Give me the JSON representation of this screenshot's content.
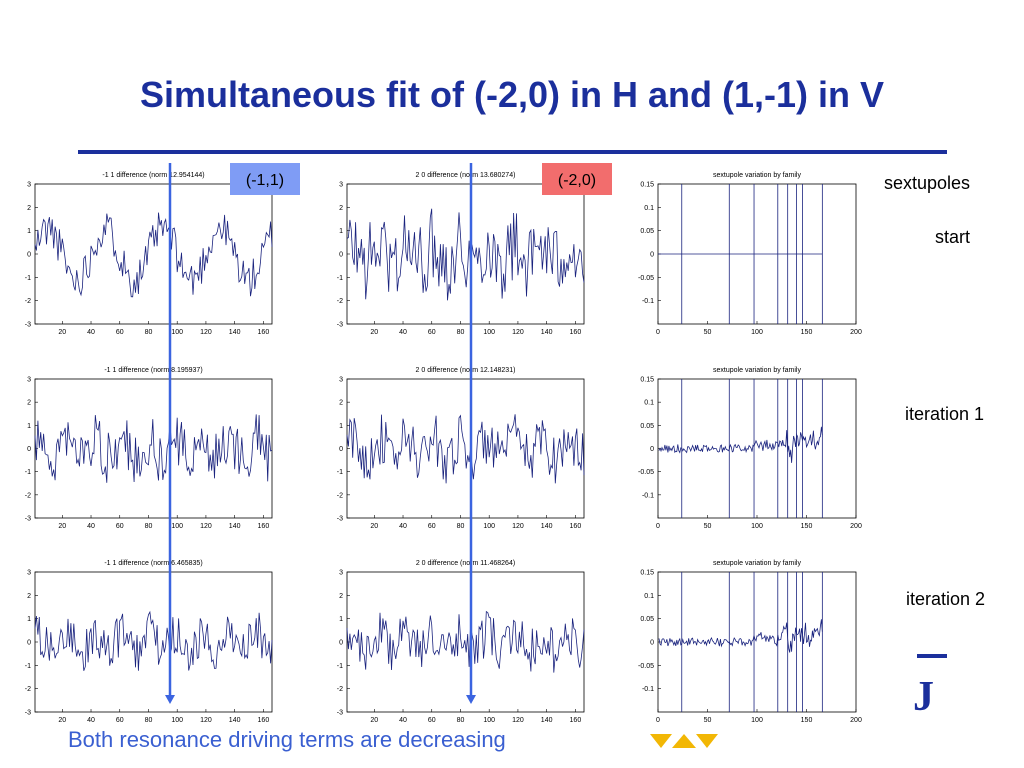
{
  "title": "Simultaneous fit of (-2,0) in H and (1,-1) in V",
  "footer": "Both resonance driving terms are decreasing",
  "tags": [
    {
      "text": "(-1,1)",
      "color": "#7f9cf5"
    },
    {
      "text": "(-2,0)",
      "color": "#f26d6d"
    }
  ],
  "row_labels": [
    "sextupoles",
    "start",
    "iteration 1",
    "iteration 2"
  ],
  "colors": {
    "title": "#1b2f9c",
    "trace": "#1a237e",
    "arrow": "#3b64e0",
    "footer": "#3a5fd1"
  },
  "chart_data": [
    {
      "type": "line",
      "title": "-1 1 difference (norm 12.954144)",
      "xlim": [
        1,
        166
      ],
      "ylim": [
        -3,
        3
      ],
      "xticks": [
        20,
        40,
        60,
        80,
        100,
        120,
        140,
        160
      ],
      "yticks": [
        -3,
        -2,
        -1,
        0,
        1,
        2,
        3
      ]
    },
    {
      "type": "line",
      "title": "2 0 difference (norm 13.680274)",
      "xlim": [
        1,
        166
      ],
      "ylim": [
        -3,
        3
      ],
      "xticks": [
        20,
        40,
        60,
        80,
        100,
        120,
        140,
        160
      ],
      "yticks": [
        -3,
        -2,
        -1,
        0,
        1,
        2,
        3
      ]
    },
    {
      "type": "line",
      "title": "sextupole variation by family",
      "xlim": [
        0,
        200
      ],
      "ylim": [
        -0.15,
        0.15
      ],
      "xticks": [
        0,
        50,
        100,
        150,
        200
      ],
      "yticks": [
        -0.1,
        -0.05,
        0,
        0.05,
        0.1,
        0.15
      ],
      "vlines": [
        24,
        72,
        97,
        121,
        131,
        140,
        146,
        166
      ]
    },
    {
      "type": "line",
      "title": "-1 1 difference (norm 8.195937)",
      "xlim": [
        1,
        166
      ],
      "ylim": [
        -3,
        3
      ],
      "xticks": [
        20,
        40,
        60,
        80,
        100,
        120,
        140,
        160
      ],
      "yticks": [
        -3,
        -2,
        -1,
        0,
        1,
        2,
        3
      ]
    },
    {
      "type": "line",
      "title": "2 0 difference (norm 12.148231)",
      "xlim": [
        1,
        166
      ],
      "ylim": [
        -3,
        3
      ],
      "xticks": [
        20,
        40,
        60,
        80,
        100,
        120,
        140,
        160
      ],
      "yticks": [
        -3,
        -2,
        -1,
        0,
        1,
        2,
        3
      ]
    },
    {
      "type": "line",
      "title": "sextupole variation by family",
      "xlim": [
        0,
        200
      ],
      "ylim": [
        -0.15,
        0.15
      ],
      "xticks": [
        0,
        50,
        100,
        150,
        200
      ],
      "yticks": [
        -0.1,
        -0.05,
        0,
        0.05,
        0.1,
        0.15
      ],
      "vlines": [
        24,
        72,
        97,
        121,
        131,
        140,
        146,
        166
      ]
    },
    {
      "type": "line",
      "title": "-1 1 difference (norm 6.465835)",
      "xlim": [
        1,
        166
      ],
      "ylim": [
        -3,
        3
      ],
      "xticks": [
        20,
        40,
        60,
        80,
        100,
        120,
        140,
        160
      ],
      "yticks": [
        -3,
        -2,
        -1,
        0,
        1,
        2,
        3
      ]
    },
    {
      "type": "line",
      "title": "2 0 difference (norm 11.468264)",
      "xlim": [
        1,
        166
      ],
      "ylim": [
        -3,
        3
      ],
      "xticks": [
        20,
        40,
        60,
        80,
        100,
        120,
        140,
        160
      ],
      "yticks": [
        -3,
        -2,
        -1,
        0,
        1,
        2,
        3
      ]
    },
    {
      "type": "line",
      "title": "sextupole variation by family",
      "xlim": [
        0,
        200
      ],
      "ylim": [
        -0.15,
        0.15
      ],
      "xticks": [
        0,
        50,
        100,
        150,
        200
      ],
      "yticks": [
        -0.1,
        -0.05,
        0,
        0.05,
        0.1,
        0.15
      ],
      "vlines": [
        24,
        72,
        97,
        121,
        131,
        140,
        146,
        166
      ]
    }
  ]
}
